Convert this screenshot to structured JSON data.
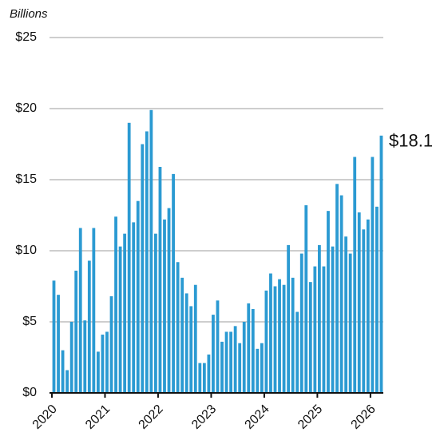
{
  "chart_data": {
    "type": "bar",
    "axis_label": "Billions",
    "categories": [
      "2020",
      null,
      null,
      null,
      null,
      null,
      null,
      null,
      null,
      null,
      null,
      null,
      "2021",
      null,
      null,
      null,
      null,
      null,
      null,
      null,
      null,
      null,
      null,
      null,
      "2022",
      null,
      null,
      null,
      null,
      null,
      null,
      null,
      null,
      null,
      null,
      null,
      "2023",
      null,
      null,
      null,
      null,
      null,
      null,
      null,
      null,
      null,
      null,
      null,
      "2024",
      null,
      null,
      null,
      null,
      null,
      null,
      null,
      null,
      null,
      null,
      null,
      "2025",
      null,
      null,
      null,
      null,
      null,
      null,
      null,
      null,
      null,
      null,
      null,
      "2026",
      null,
      null
    ],
    "values": [
      7.9,
      6.9,
      3.0,
      1.6,
      5.0,
      8.6,
      11.6,
      5.1,
      9.3,
      11.6,
      2.9,
      4.1,
      4.3,
      6.8,
      12.4,
      10.3,
      11.2,
      19.0,
      12.0,
      13.5,
      17.5,
      18.4,
      19.9,
      11.2,
      15.9,
      12.2,
      13.0,
      15.4,
      9.2,
      8.1,
      7.0,
      6.1,
      7.6,
      2.1,
      2.1,
      2.7,
      5.5,
      6.5,
      3.6,
      4.3,
      4.3,
      4.7,
      3.5,
      5.0,
      6.3,
      5.9,
      3.1,
      3.5,
      7.2,
      8.4,
      7.5,
      8.0,
      7.6,
      10.4,
      8.1,
      5.7,
      9.8,
      13.2,
      7.8,
      8.9,
      10.4,
      8.9,
      12.8,
      10.3,
      14.7,
      13.9,
      11.0,
      9.8,
      16.6,
      12.7,
      11.5,
      12.2,
      16.6,
      13.1,
      18.1
    ],
    "last_value_label": "$18.1",
    "color": "#2b9ad2",
    "ylim": [
      0,
      25
    ],
    "yticks": [
      {
        "value": 0,
        "label": "$0"
      },
      {
        "value": 5,
        "label": "$5"
      },
      {
        "value": 10,
        "label": "$10"
      },
      {
        "value": 15,
        "label": "$15"
      },
      {
        "value": 20,
        "label": "$20"
      },
      {
        "value": 25,
        "label": "$25"
      }
    ],
    "grid": true
  }
}
